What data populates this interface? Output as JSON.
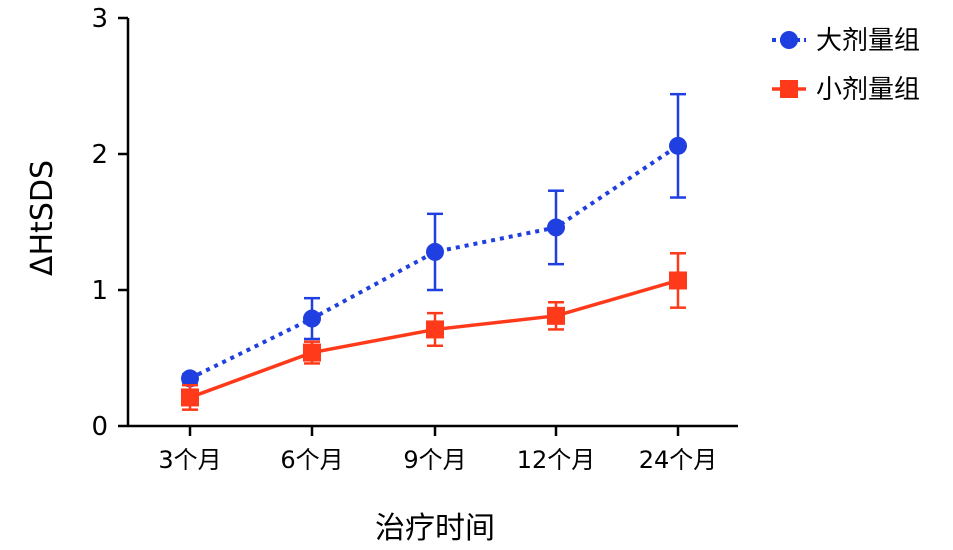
{
  "chart_data": {
    "type": "line",
    "title": "",
    "xlabel": "治疗时间",
    "ylabel": "ΔHtSDS",
    "categories": [
      "3个月",
      "6个月",
      "9个月",
      "12个月",
      "24个月"
    ],
    "ylim": [
      0,
      3
    ],
    "yticks": [
      "0",
      "1",
      "2",
      "3"
    ],
    "grid": false,
    "legend_position": "top-right",
    "series": [
      {
        "name": "大剂量组",
        "values": [
          0.35,
          0.79,
          1.28,
          1.46,
          2.06
        ],
        "error": [
          0.03,
          0.15,
          0.28,
          0.27,
          0.38
        ],
        "color": "#1f3fe0",
        "marker": "circle",
        "line_style": "dotted"
      },
      {
        "name": "小剂量组",
        "values": [
          0.21,
          0.54,
          0.71,
          0.81,
          1.07
        ],
        "error": [
          0.09,
          0.08,
          0.12,
          0.1,
          0.2
        ],
        "color": "#ff3a1a",
        "marker": "square",
        "line_style": "solid"
      }
    ]
  }
}
